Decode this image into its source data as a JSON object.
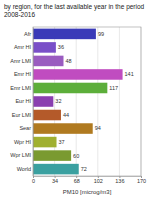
{
  "chart_data": {
    "type": "bar",
    "orientation": "horizontal",
    "title": "by region, for the last available year in the period 2008-2016",
    "xlabel": "PM10 [microg/m3]",
    "categories": [
      "Afr",
      "Amr HI",
      "Amr LMI",
      "Emr HI",
      "Emr LMI",
      "Eur HI",
      "Eur LMI",
      "Sear",
      "Wpr HI",
      "Wpr LMI",
      "World"
    ],
    "values": [
      99,
      36,
      48,
      141,
      117,
      32,
      44,
      94,
      37,
      60,
      72
    ],
    "colors": [
      "#3a3ab8",
      "#7a4fc8",
      "#9a5cc0",
      "#c04cc0",
      "#5cae3a",
      "#8a3fb0",
      "#b45a2a",
      "#b07a20",
      "#a0b030",
      "#7a9a30",
      "#3aa0a0"
    ],
    "xlim": [
      0,
      170
    ],
    "xticks": [
      0,
      34,
      68,
      102,
      136,
      170
    ],
    "grid": true,
    "data_labels": true
  }
}
